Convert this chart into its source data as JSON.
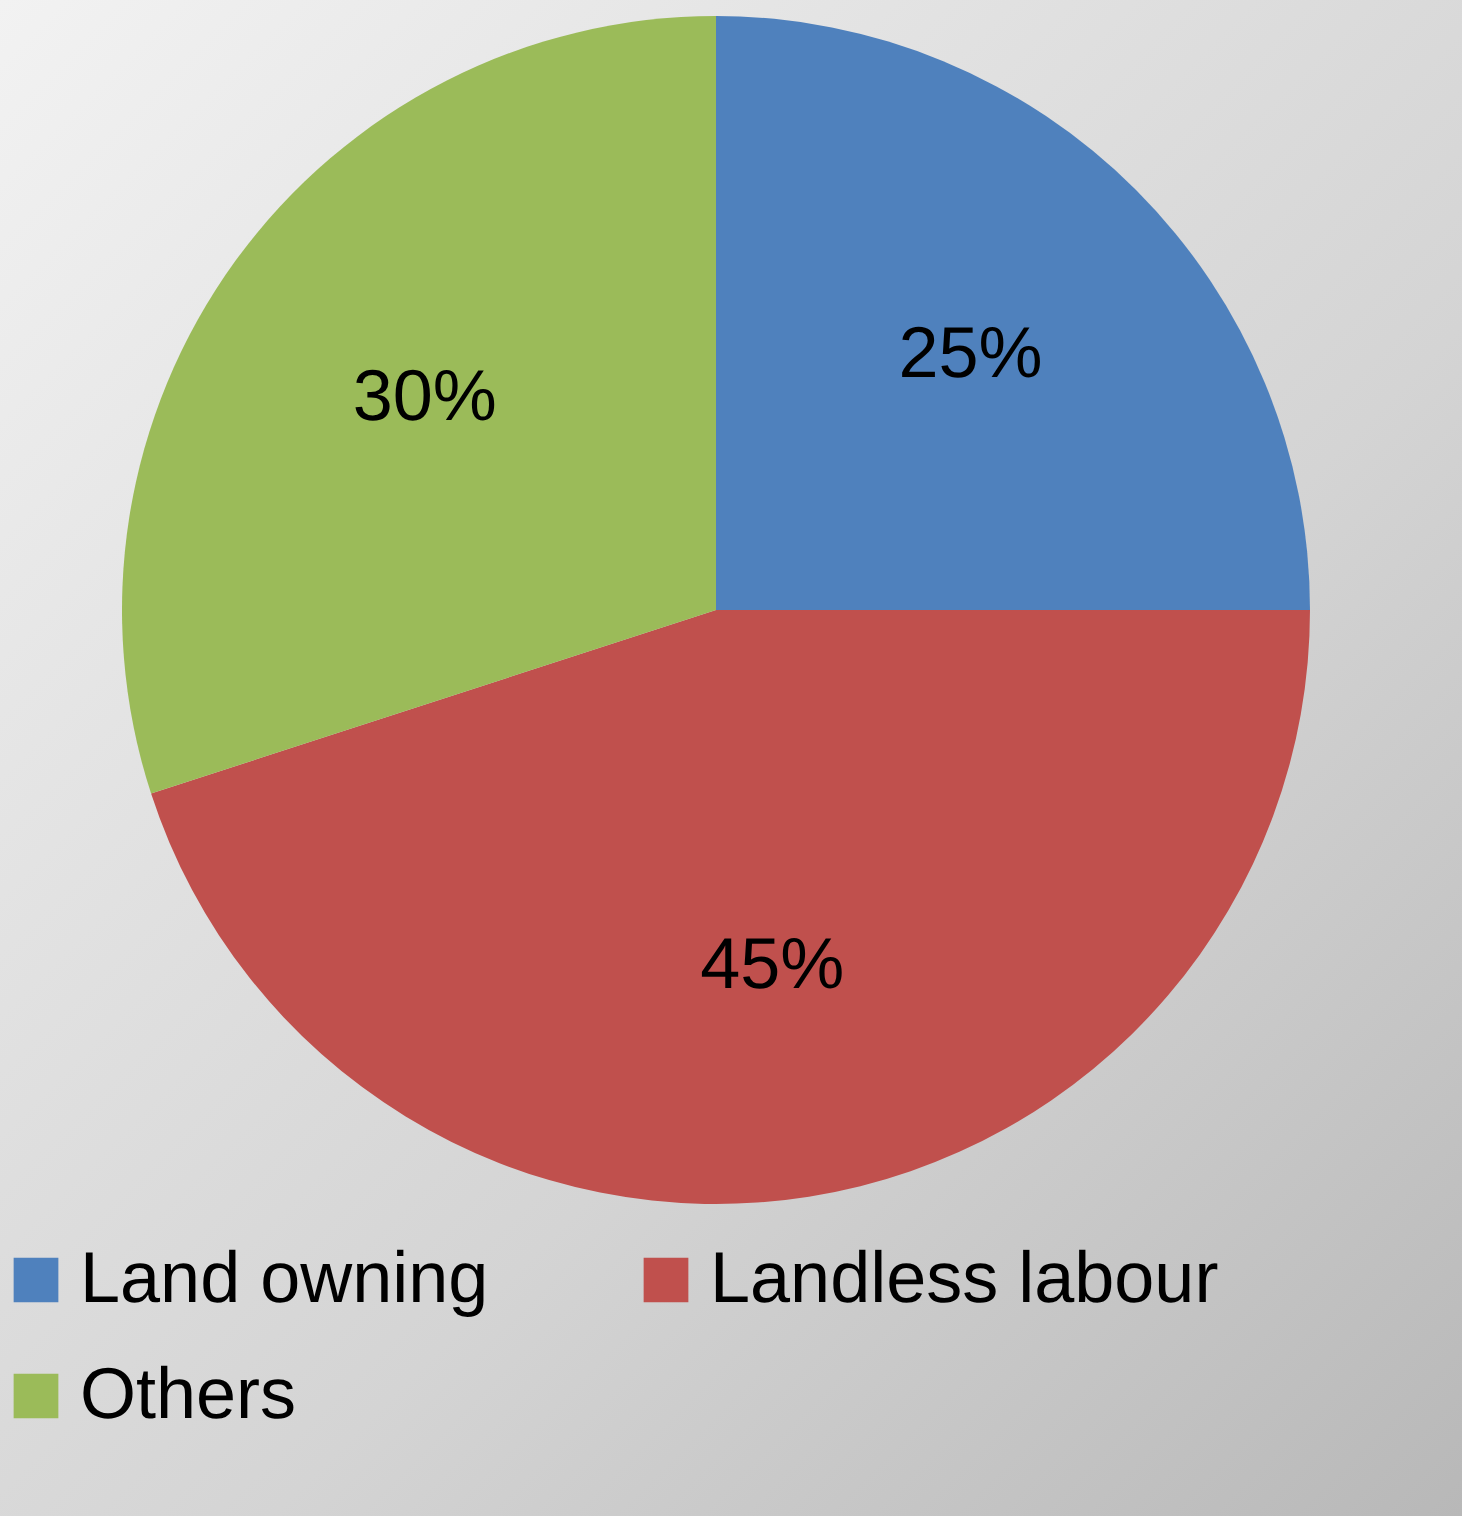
{
  "chart_data": {
    "type": "pie",
    "categories": [
      "Land owning",
      "Landless labour",
      "Others"
    ],
    "values": [
      25,
      45,
      30
    ],
    "colors": [
      "#4f81bd",
      "#c0504d",
      "#9bbb59"
    ],
    "value_labels": [
      "25%",
      "45%",
      "30%"
    ],
    "legend": "bottom"
  }
}
